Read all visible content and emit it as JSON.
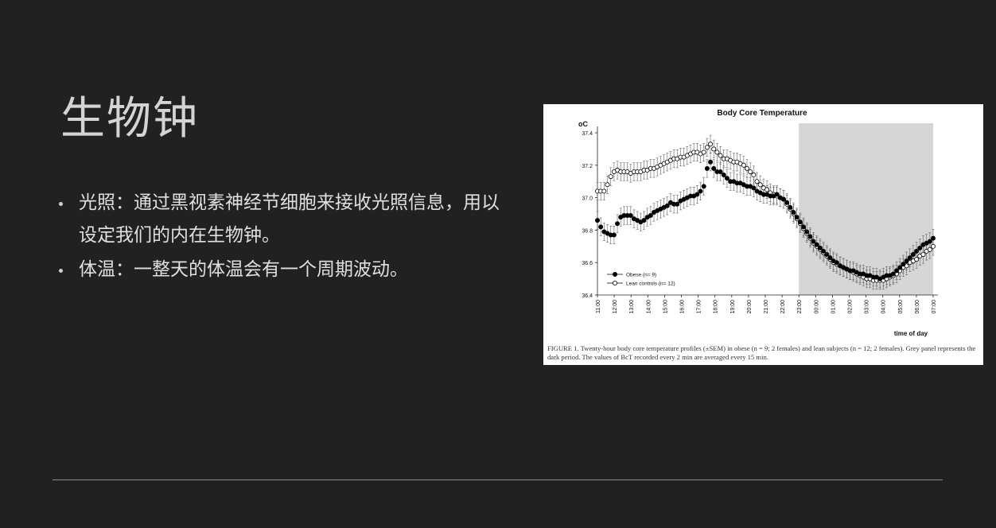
{
  "slide": {
    "title": "生物钟",
    "bullets": [
      {
        "text": "光照：通过黑视素神经节细胞来接收光照信息，用以设定我们的内在生物钟。"
      },
      {
        "text": "体温：一整天的体温会有一个周期波动。"
      }
    ]
  },
  "figure": {
    "caption": "FIGURE 1.  Twenty-hour body core temperature profiles (±SEM) in obese (n = 9; 2 females) and lean subjects (n = 12; 2 females). Grey panel represents the dark period. The values of BcT recorded every 2 min are averaged every 15 min."
  },
  "chart_data": {
    "type": "line",
    "title": "Body Core Temperature",
    "ylabel": "oC",
    "xlabel": "time of day",
    "ylim": [
      36.4,
      37.4
    ],
    "yticks": [
      "37.4",
      "37.2",
      "37.0",
      "36.8",
      "36.6",
      "36.4"
    ],
    "xticks": [
      "11:00",
      "12:00",
      "13:00",
      "14:00",
      "15:00",
      "16:00",
      "17:00",
      "18:00",
      "19:00",
      "20:00",
      "21:00",
      "22:00",
      "23:00",
      "00:00",
      "01:00",
      "02:00",
      "03:00",
      "04:00",
      "05:00",
      "06:00",
      "07:00"
    ],
    "shaded_region": [
      "23:00",
      "07:00"
    ],
    "legend_position": "bottom-left",
    "series": [
      {
        "name": "Obese (n= 9)",
        "marker": "filled-circle",
        "values": [
          36.86,
          36.82,
          36.79,
          36.78,
          36.77,
          36.77,
          36.84,
          36.88,
          36.89,
          36.89,
          36.89,
          36.87,
          36.86,
          36.85,
          36.86,
          36.88,
          36.89,
          36.91,
          36.92,
          36.93,
          36.94,
          36.95,
          36.97,
          36.96,
          36.96,
          36.98,
          36.99,
          37.0,
          37.01,
          37.01,
          37.02,
          37.04,
          37.07,
          37.18,
          37.22,
          37.18,
          37.16,
          37.16,
          37.14,
          37.12,
          37.1,
          37.1,
          37.09,
          37.09,
          37.08,
          37.07,
          37.07,
          37.06,
          37.04,
          37.03,
          37.02,
          37.02,
          37.01,
          37.01,
          37.02,
          37.0,
          36.99,
          36.97,
          36.94,
          36.91,
          36.88,
          36.85,
          36.82,
          36.79,
          36.76,
          36.73,
          36.71,
          36.69,
          36.67,
          36.65,
          36.63,
          36.61,
          36.6,
          36.58,
          36.57,
          36.56,
          36.55,
          36.55,
          36.54,
          36.53,
          36.53,
          36.52,
          36.52,
          36.51,
          36.51,
          36.5,
          36.51,
          36.52,
          36.52,
          36.53,
          36.55,
          36.57,
          36.59,
          36.61,
          36.63,
          36.65,
          36.67,
          36.69,
          36.71,
          36.72,
          36.73,
          36.75
        ]
      },
      {
        "name": "Lean controls (n= 12)",
        "marker": "open-circle",
        "values": [
          37.04,
          37.04,
          37.04,
          37.08,
          37.13,
          37.16,
          37.17,
          37.16,
          37.16,
          37.16,
          37.15,
          37.16,
          37.16,
          37.16,
          37.17,
          37.17,
          37.18,
          37.18,
          37.19,
          37.2,
          37.21,
          37.22,
          37.23,
          37.24,
          37.24,
          37.25,
          37.25,
          37.26,
          37.27,
          37.28,
          37.28,
          37.27,
          37.28,
          37.31,
          37.33,
          37.3,
          37.28,
          37.26,
          37.24,
          37.24,
          37.23,
          37.22,
          37.22,
          37.21,
          37.2,
          37.18,
          37.16,
          37.14,
          37.1,
          37.08,
          37.06,
          37.05,
          37.03,
          37.02,
          37.01,
          37.0,
          36.99,
          36.96,
          36.93,
          36.9,
          36.87,
          36.84,
          36.81,
          36.78,
          36.75,
          36.72,
          36.7,
          36.68,
          36.66,
          36.64,
          36.62,
          36.6,
          36.59,
          36.58,
          36.57,
          36.56,
          36.55,
          36.54,
          36.53,
          36.52,
          36.51,
          36.5,
          36.5,
          36.49,
          36.49,
          36.49,
          36.49,
          36.5,
          36.51,
          36.52,
          36.53,
          36.55,
          36.57,
          36.58,
          36.6,
          36.61,
          36.62,
          36.64,
          36.65,
          36.67,
          36.68,
          36.7
        ]
      }
    ]
  },
  "colors": {
    "background": "#222121",
    "title_text": "#d4d4d4",
    "body_text": "#e0e0e0",
    "rule": "#8a8a8a",
    "dark_period_shade": "#d6d6d6"
  }
}
